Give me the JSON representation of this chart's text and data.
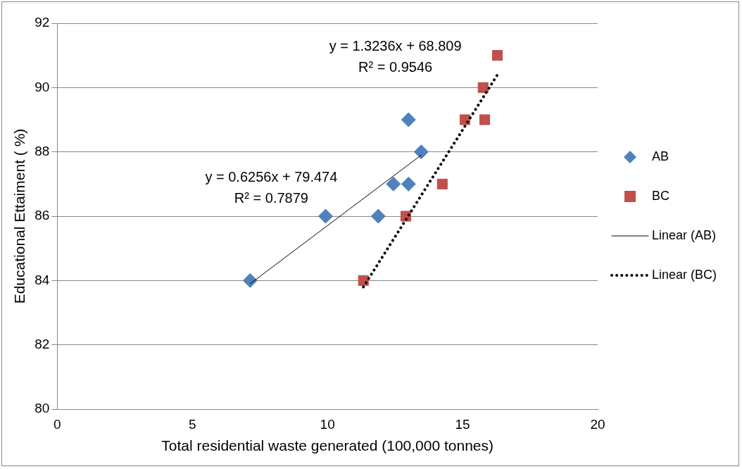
{
  "chart_data": {
    "type": "scatter",
    "xlabel": "Total residential waste generated (100,000 tonnes)",
    "ylabel": "Educational Ettaiment ( %)",
    "xlim": [
      0,
      20
    ],
    "xticks": [
      0,
      5,
      10,
      15,
      20
    ],
    "ylim": [
      80,
      92
    ],
    "yticks": [
      80,
      82,
      84,
      86,
      88,
      90,
      92
    ],
    "grid": "y",
    "legend": "right",
    "series": [
      {
        "name": "AB",
        "color": "#4f81bd",
        "marker": "diamond",
        "x": [
          7.14,
          9.93,
          11.88,
          12.44,
          13.0,
          13.0,
          13.47
        ],
        "values": [
          84,
          86,
          86,
          87,
          87,
          89,
          88
        ]
      },
      {
        "name": "BC",
        "color": "#c0504d",
        "marker": "square",
        "x": [
          11.33,
          12.9,
          14.25,
          15.09,
          15.76,
          15.82,
          16.29
        ],
        "values": [
          84,
          86,
          87,
          89,
          90,
          89,
          91
        ]
      },
      {
        "name": "Linear (AB)",
        "type": "line",
        "color": "#000000",
        "marker": "none",
        "line_style": "solid",
        "x": [
          7.14,
          13.47
        ],
        "values": [
          83.9,
          87.9
        ]
      },
      {
        "name": "Linear (BC)",
        "type": "line",
        "color": "#000000",
        "marker": "none",
        "line_style": "dotted",
        "x": [
          11.33,
          16.29
        ],
        "values": [
          83.8,
          90.4
        ]
      }
    ],
    "annotations": [
      "y = 0.6256x + 79.474",
      "R² = 0.7879",
      "y = 1.3236x + 68.809",
      "R² = 0.9546"
    ]
  }
}
